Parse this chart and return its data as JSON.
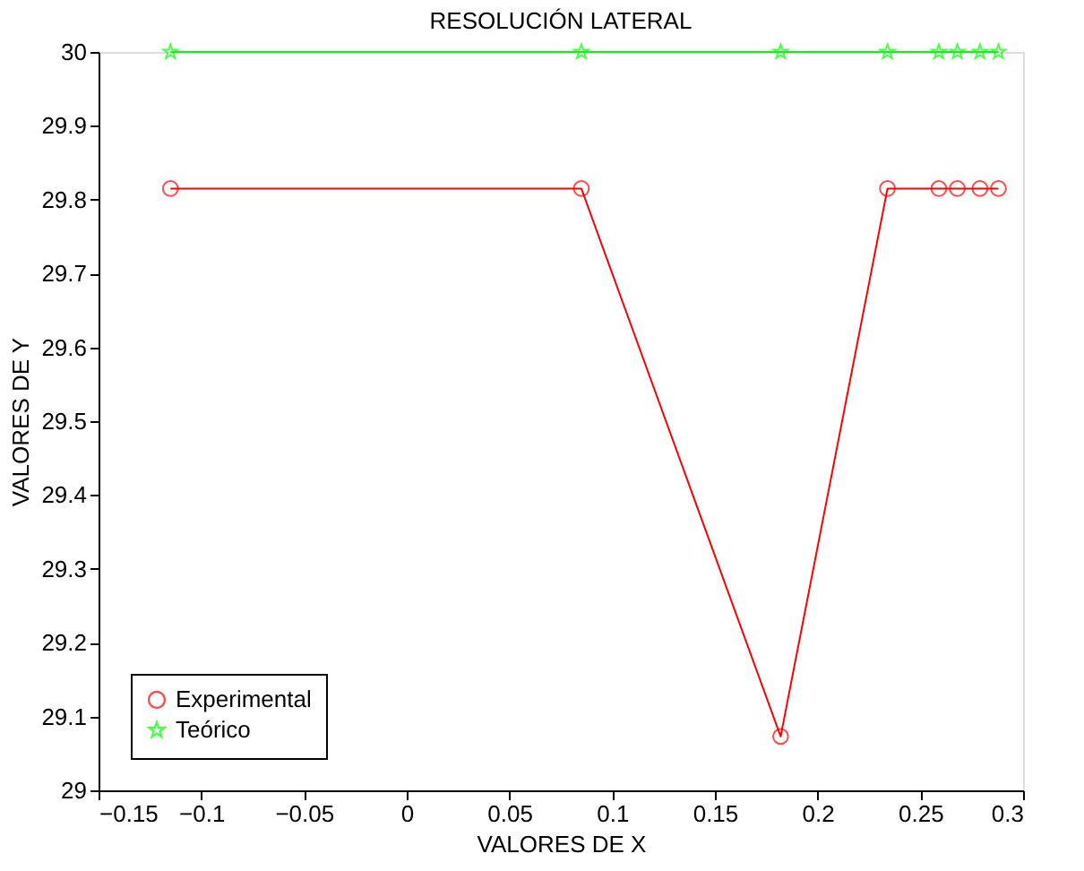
{
  "chart_data": {
    "type": "line",
    "title": "RESOLUCIÓN LATERAL",
    "xlabel": "VALORES DE X",
    "ylabel": "VALORES DE Y",
    "x": [
      -0.115,
      0.085,
      0.182,
      0.234,
      0.259,
      0.268,
      0.279,
      0.288
    ],
    "series": [
      {
        "name": "Experimental",
        "color": "#ff0000",
        "marker": "circle",
        "values": [
          29.815,
          29.815,
          29.073,
          29.815,
          29.815,
          29.815,
          29.815,
          29.815
        ]
      },
      {
        "name": "Teórico",
        "color": "#00ff00",
        "marker": "star",
        "values": [
          30,
          30,
          30,
          30,
          30,
          30,
          30,
          30
        ]
      }
    ],
    "xlim": [
      -0.15,
      0.3
    ],
    "xticks": [
      -0.15,
      -0.1,
      -0.05,
      0,
      0.05,
      0.1,
      0.15,
      0.2,
      0.25,
      0.3
    ],
    "ylim": [
      29,
      30
    ],
    "yticks": [
      29,
      29.1,
      29.2,
      29.3,
      29.4,
      29.5,
      29.6,
      29.7,
      29.8,
      29.9,
      30
    ],
    "grid": false,
    "legend": "bottom left",
    "line_style": "solid"
  }
}
